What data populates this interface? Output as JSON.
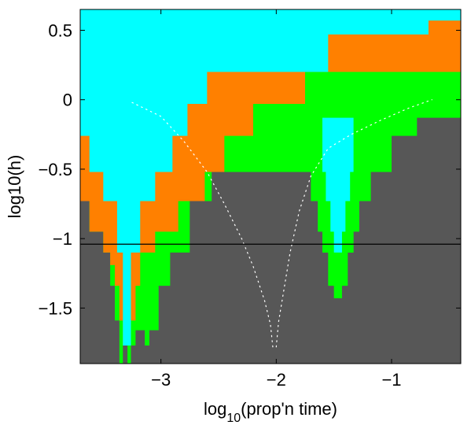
{
  "chart_data": {
    "type": "heatmap",
    "title": "",
    "xlabel": {
      "base": "log",
      "sub": "10",
      "rest": "(prop'n time)"
    },
    "ylabel": "log10(h)",
    "xlim": [
      -3.7,
      -0.4
    ],
    "ylim": [
      -1.9,
      0.65
    ],
    "x_ticks": [
      {
        "value": -3,
        "label": "−3"
      },
      {
        "value": -2,
        "label": "−2"
      },
      {
        "value": -1,
        "label": "−1"
      }
    ],
    "y_ticks": [
      {
        "value": 0.5,
        "label": "0.5"
      },
      {
        "value": 0,
        "label": "0"
      },
      {
        "value": -0.5,
        "label": "−0.5"
      },
      {
        "value": -1,
        "label": "−1"
      },
      {
        "value": -1.5,
        "label": "−1.5"
      }
    ],
    "colors": {
      "cyan": "#00ffff",
      "orange": "#ff8000",
      "green": "#00ff00",
      "gray": "#575757"
    },
    "boundaries": {
      "cyan_bottom": [
        [
          -3.7,
          -0.26
        ],
        [
          -3.62,
          -0.26
        ],
        [
          -3.62,
          -0.52
        ],
        [
          -3.5,
          -0.52
        ],
        [
          -3.5,
          -0.73
        ],
        [
          -3.38,
          -0.73
        ],
        [
          -3.38,
          -1.1
        ],
        [
          -3.33,
          -1.1
        ],
        [
          -3.33,
          -1.77
        ],
        [
          -3.26,
          -1.77
        ],
        [
          -3.26,
          -1.1
        ],
        [
          -3.18,
          -1.1
        ],
        [
          -3.18,
          -0.73
        ],
        [
          -3.05,
          -0.73
        ],
        [
          -3.05,
          -0.52
        ],
        [
          -2.9,
          -0.52
        ],
        [
          -2.9,
          -0.26
        ],
        [
          -2.77,
          -0.26
        ],
        [
          -2.77,
          -0.03
        ],
        [
          -2.6,
          -0.03
        ],
        [
          -2.6,
          0.2
        ],
        [
          -1.55,
          0.2
        ],
        [
          -1.55,
          0.47
        ],
        [
          -0.68,
          0.47
        ],
        [
          -0.68,
          0.57
        ],
        [
          -0.4,
          0.57
        ]
      ],
      "orange_bottom": [
        [
          -3.7,
          -0.73
        ],
        [
          -3.62,
          -0.73
        ],
        [
          -3.62,
          -0.95
        ],
        [
          -3.5,
          -0.95
        ],
        [
          -3.5,
          -1.1
        ],
        [
          -3.44,
          -1.1
        ],
        [
          -3.44,
          -1.19
        ],
        [
          -3.4,
          -1.19
        ],
        [
          -3.4,
          -1.34
        ],
        [
          -3.36,
          -1.34
        ],
        [
          -3.36,
          -1.59
        ],
        [
          -3.33,
          -1.59
        ],
        [
          -3.33,
          -1.77
        ],
        [
          -3.26,
          -1.77
        ],
        [
          -3.26,
          -1.59
        ],
        [
          -3.22,
          -1.59
        ],
        [
          -3.22,
          -1.34
        ],
        [
          -3.18,
          -1.34
        ],
        [
          -3.18,
          -1.1
        ],
        [
          -3.05,
          -1.1
        ],
        [
          -3.05,
          -0.95
        ],
        [
          -2.85,
          -0.95
        ],
        [
          -2.85,
          -0.73
        ],
        [
          -2.62,
          -0.73
        ],
        [
          -2.62,
          -0.52
        ],
        [
          -2.45,
          -0.52
        ],
        [
          -2.45,
          -0.26
        ],
        [
          -2.2,
          -0.26
        ],
        [
          -2.2,
          -0.03
        ],
        [
          -1.75,
          -0.03
        ],
        [
          -1.75,
          0.2
        ],
        [
          -0.4,
          0.2
        ]
      ],
      "green_bottom": [
        [
          -3.7,
          -0.73
        ],
        [
          -3.62,
          -0.73
        ],
        [
          -3.62,
          -0.95
        ],
        [
          -3.5,
          -0.95
        ],
        [
          -3.5,
          -1.1
        ],
        [
          -3.44,
          -1.1
        ],
        [
          -3.44,
          -1.34
        ],
        [
          -3.4,
          -1.34
        ],
        [
          -3.4,
          -1.59
        ],
        [
          -3.36,
          -1.59
        ],
        [
          -3.36,
          -1.9
        ],
        [
          -3.33,
          -1.9
        ],
        [
          -3.33,
          -1.77
        ],
        [
          -3.29,
          -1.77
        ],
        [
          -3.29,
          -1.9
        ],
        [
          -3.26,
          -1.9
        ],
        [
          -3.26,
          -1.77
        ],
        [
          -3.22,
          -1.77
        ],
        [
          -3.22,
          -1.66
        ],
        [
          -3.14,
          -1.66
        ],
        [
          -3.14,
          -1.77
        ],
        [
          -3.1,
          -1.77
        ],
        [
          -3.1,
          -1.66
        ],
        [
          -3.02,
          -1.66
        ],
        [
          -3.02,
          -1.34
        ],
        [
          -2.92,
          -1.34
        ],
        [
          -2.92,
          -1.1
        ],
        [
          -2.75,
          -1.1
        ],
        [
          -2.75,
          -0.73
        ],
        [
          -2.56,
          -0.73
        ],
        [
          -2.56,
          -0.52
        ],
        [
          -1.7,
          -0.52
        ],
        [
          -1.7,
          -0.73
        ],
        [
          -1.64,
          -0.73
        ],
        [
          -1.64,
          -0.95
        ],
        [
          -1.6,
          -0.95
        ],
        [
          -1.6,
          -1.1
        ],
        [
          -1.55,
          -1.1
        ],
        [
          -1.55,
          -1.34
        ],
        [
          -1.5,
          -1.34
        ],
        [
          -1.5,
          -1.43
        ],
        [
          -1.43,
          -1.43
        ],
        [
          -1.43,
          -1.34
        ],
        [
          -1.38,
          -1.34
        ],
        [
          -1.38,
          -1.1
        ],
        [
          -1.33,
          -1.1
        ],
        [
          -1.33,
          -0.95
        ],
        [
          -1.28,
          -0.95
        ],
        [
          -1.28,
          -0.73
        ],
        [
          -1.18,
          -0.73
        ],
        [
          -1.18,
          -0.52
        ],
        [
          -1.0,
          -0.52
        ],
        [
          -1.0,
          -0.26
        ],
        [
          -0.78,
          -0.26
        ],
        [
          -0.78,
          -0.13
        ],
        [
          -0.4,
          -0.13
        ]
      ],
      "notch_top": [
        [
          -1.6,
          -0.13
        ],
        [
          -1.6,
          -0.52
        ],
        [
          -1.57,
          -0.52
        ],
        [
          -1.57,
          -0.73
        ],
        [
          -1.53,
          -0.73
        ],
        [
          -1.53,
          -0.95
        ],
        [
          -1.5,
          -0.95
        ],
        [
          -1.5,
          -1.1
        ],
        [
          -1.43,
          -1.1
        ],
        [
          -1.43,
          -0.95
        ],
        [
          -1.4,
          -0.95
        ],
        [
          -1.4,
          -0.73
        ],
        [
          -1.36,
          -0.73
        ],
        [
          -1.36,
          -0.52
        ],
        [
          -1.33,
          -0.52
        ],
        [
          -1.33,
          -0.13
        ]
      ]
    },
    "reference_line": {
      "y": -1.04,
      "color": "#000000"
    },
    "dotted_curves": [
      {
        "color": "#ffffff",
        "points": [
          [
            -3.25,
            -0.02
          ],
          [
            -3.0,
            -0.12
          ],
          [
            -2.8,
            -0.3
          ],
          [
            -2.6,
            -0.52
          ],
          [
            -2.45,
            -0.75
          ],
          [
            -2.3,
            -1.0
          ],
          [
            -2.2,
            -1.2
          ],
          [
            -2.1,
            -1.45
          ],
          [
            -2.05,
            -1.62
          ],
          [
            -2.03,
            -1.78
          ]
        ]
      },
      {
        "color": "#ffffff",
        "points": [
          [
            -2.0,
            -1.78
          ],
          [
            -1.98,
            -1.6
          ],
          [
            -1.94,
            -1.4
          ],
          [
            -1.88,
            -1.1
          ],
          [
            -1.8,
            -0.8
          ],
          [
            -1.7,
            -0.55
          ],
          [
            -1.55,
            -0.35
          ],
          [
            -1.35,
            -0.25
          ],
          [
            -1.1,
            -0.15
          ],
          [
            -0.85,
            -0.06
          ],
          [
            -0.65,
            -0.0
          ]
        ]
      }
    ]
  }
}
